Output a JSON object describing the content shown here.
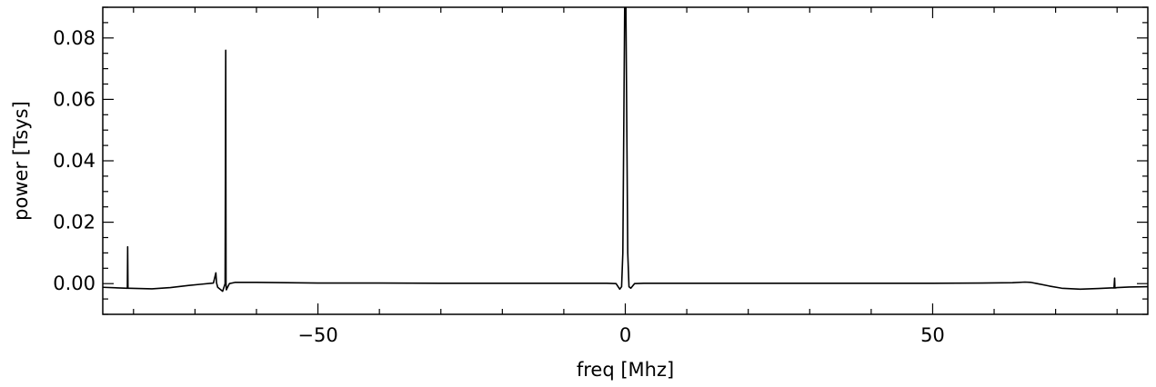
{
  "chart_data": {
    "type": "line",
    "title": "",
    "xlabel": "freq [Mhz]",
    "ylabel": "power [Tsys]",
    "xlim": [
      -85,
      85
    ],
    "ylim": [
      -0.01,
      0.09
    ],
    "xticks": [
      -50,
      0,
      50
    ],
    "xtick_labels": [
      "−50",
      "0",
      "50"
    ],
    "yticks": [
      0.0,
      0.02,
      0.04,
      0.06,
      0.08
    ],
    "ytick_labels": [
      "0.00",
      "0.02",
      "0.04",
      "0.06",
      "0.08"
    ],
    "grid": false,
    "series": [
      {
        "x": [
          -85,
          -81,
          -80.95,
          -80.9,
          -80.8,
          -80.7,
          -77,
          -74,
          -71,
          -69,
          -67,
          -66.6,
          -66.5,
          -66.3,
          -65.5,
          -65.1,
          -65.0,
          -64.95,
          -64.9,
          -64.7,
          -64.4,
          -63.5,
          -60,
          -50,
          -40,
          -30,
          -20,
          -10,
          -3,
          -1.5,
          -0.9,
          -0.6,
          -0.4,
          -0.25,
          -0.1,
          0,
          0.1,
          0.25,
          0.4,
          0.6,
          0.9,
          1.5,
          3,
          10,
          20,
          30,
          40,
          50,
          58,
          63,
          65,
          66,
          67,
          69,
          71,
          74,
          77,
          79,
          79.5,
          79.6,
          79.65,
          79.7,
          80,
          82,
          85
        ],
        "y": [
          -0.0012,
          -0.0015,
          0.012,
          -0.0015,
          -0.0015,
          -0.0015,
          -0.0017,
          -0.0013,
          -0.0006,
          -0.0002,
          0.0002,
          0.0035,
          0.0003,
          -0.0012,
          -0.0025,
          0.0,
          0.076,
          0.0,
          -0.002,
          -0.0012,
          0.0,
          0.0004,
          0.0004,
          0.0002,
          0.0002,
          0.0001,
          0.0001,
          0.0001,
          0.0001,
          0.0,
          -0.0018,
          -0.001,
          0.01,
          0.05,
          0.09,
          0.09,
          0.09,
          0.05,
          0.01,
          -0.001,
          -0.0015,
          0.0,
          0.0001,
          0.0001,
          0.0001,
          0.0001,
          0.0001,
          0.0001,
          0.0002,
          0.0003,
          0.0005,
          0.0004,
          0.0,
          -0.0008,
          -0.0015,
          -0.0018,
          -0.0016,
          -0.0014,
          -0.0014,
          0.0018,
          -0.0014,
          -0.0014,
          -0.0013,
          -0.0011,
          -0.001
        ]
      }
    ]
  }
}
